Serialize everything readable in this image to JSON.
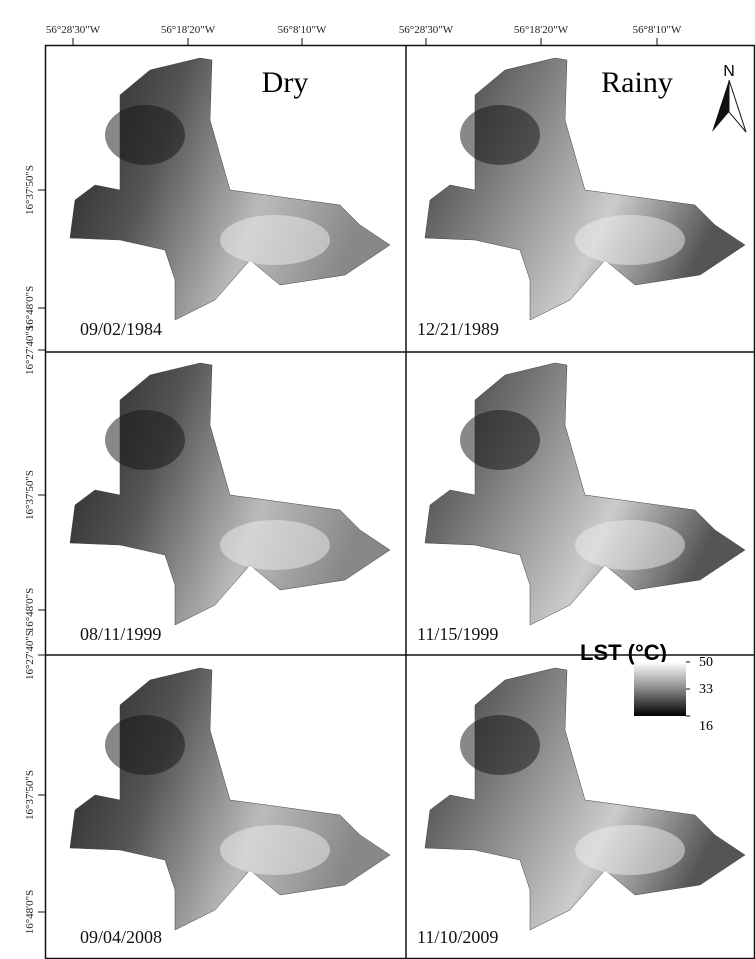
{
  "longitude_labels": [
    "56°28'30\"W",
    "56°18'20\"W",
    "56°8'10\"W",
    "56°28'30\"W",
    "56°18'20\"W",
    "56°8'10\"W"
  ],
  "latitude_labels": [
    "16°37'50\"S",
    "16°48'0\"S",
    "16°27'40\"S",
    "16°37'50\"S",
    "16°48'0\"S",
    "16°27'40\"S",
    "16°37'50\"S",
    "16°48'0\"S"
  ],
  "column_titles": [
    "Dry",
    "Rainy"
  ],
  "north_arrow": "N",
  "panels": [
    {
      "date": "09/02/1984"
    },
    {
      "date": "12/21/1989"
    },
    {
      "date": "08/11/1999"
    },
    {
      "date": "11/15/1999"
    },
    {
      "date": "09/04/2008"
    },
    {
      "date": "11/10/2009"
    }
  ],
  "legend": {
    "title": "LST (°C)",
    "ticks": [
      50,
      33,
      16
    ]
  }
}
